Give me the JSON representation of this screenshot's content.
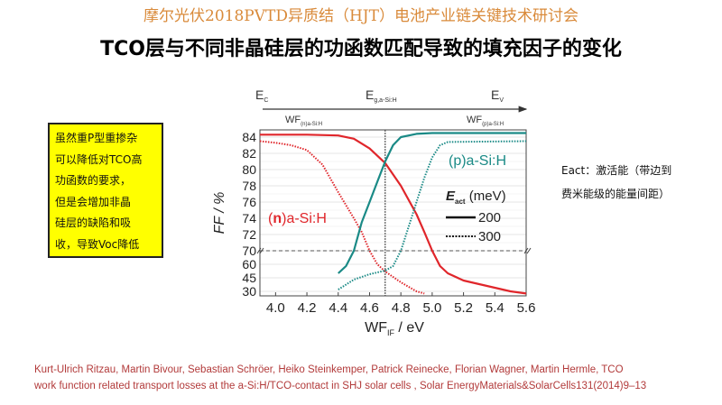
{
  "header": {
    "conference": "摩尔光伏2018PVTD异质结（HJT）电池产业链关键技术研讨会",
    "title": "TCO层与不同非晶硅层的功函数匹配导致的填充因子的变化"
  },
  "note_box": {
    "lines": [
      "虽然重P型重掺杂",
      "可以降低对TCO高",
      "功函数的要求，",
      "但是会增加非晶",
      "硅层的缺陷和吸",
      "收，导致Voc降低"
    ],
    "bg_color": "#ffff00"
  },
  "eact_note": {
    "line1": "Eact：激活能（带边到",
    "line2": "费米能级的能量间距）"
  },
  "reference": {
    "line1": "Kurt-Ulrich Ritzau, Martin Bivour, Sebastian Schröer, Heiko Steinkemper, Patrick Reinecke, Florian Wagner, Martin Hermle, TCO",
    "line2": "work function related transport losses at the a-Si:H/TCO-contact in SHJ solar cells , Solar EnergyMaterials&SolarCells131(2014)9–13"
  },
  "chart_data": {
    "type": "line",
    "title": "",
    "xlabel": "WF",
    "xlabel_sub": "IF",
    "xlabel_unit": " / eV",
    "ylabel": "FF / %",
    "xlim": [
      3.9,
      5.6
    ],
    "x_ticks": [
      "4.0",
      "4.2",
      "4.4",
      "4.6",
      "4.8",
      "5.0",
      "5.2",
      "5.4",
      "5.6"
    ],
    "y_ticks": [
      "84",
      "82",
      "80",
      "78",
      "76",
      "74",
      "72",
      "70",
      "60",
      "45",
      "30"
    ],
    "y_axis_break": "broken axis: 70–84 linear upper segment, 30–60 compressed lower segment",
    "top_axis": {
      "ec": "E",
      "ec_sub": "C",
      "eg": "E",
      "eg_sub": "g,a-Si:H",
      "ev": "E",
      "ev_sub": "V",
      "wfn": "WF",
      "wfn_sub": "(n)a-Si:H",
      "wfp": "WF",
      "wfp_sub": "(p)a-Si:H"
    },
    "reference_lines": {
      "vertical_x": 4.7,
      "horizontal_y": 70
    },
    "annotations": {
      "n_label_open": "(",
      "n_label_n": "n",
      "n_label_rest": ")a-Si:H",
      "p_label": "(p)a-Si:H"
    },
    "legend": {
      "title": "E",
      "title_sub": "act",
      "title_unit": " (meV)",
      "entries": [
        {
          "label": "200",
          "style": "solid"
        },
        {
          "label": "300",
          "style": "dotted"
        }
      ]
    },
    "colors": {
      "n": "#e0262b",
      "p": "#1a8a86"
    },
    "series": [
      {
        "name": "(n)a-Si:H Eact=200",
        "layer": "n",
        "style": "solid",
        "x": [
          3.9,
          4.2,
          4.4,
          4.5,
          4.6,
          4.7,
          4.8,
          4.9,
          4.95,
          5.0,
          5.05,
          5.1,
          5.2,
          5.3,
          5.4,
          5.5,
          5.6
        ],
        "y": [
          84.3,
          84.3,
          84.2,
          83.8,
          82.6,
          80.8,
          78.0,
          74.5,
          72.3,
          70.0,
          58,
          50,
          42,
          38,
          34,
          30,
          27
        ]
      },
      {
        "name": "(n)a-Si:H Eact=300",
        "layer": "n",
        "style": "dotted",
        "x": [
          3.9,
          4.0,
          4.1,
          4.2,
          4.3,
          4.4,
          4.5,
          4.55,
          4.6,
          4.65,
          4.7,
          4.8,
          4.9,
          4.95
        ],
        "y": [
          83.5,
          83.3,
          83.0,
          82.4,
          80.6,
          77.2,
          74.0,
          72.3,
          70.0,
          60,
          52,
          40,
          30,
          27
        ]
      },
      {
        "name": "(p)a-Si:H Eact=200",
        "layer": "p",
        "style": "solid",
        "x": [
          4.4,
          4.45,
          4.5,
          4.55,
          4.6,
          4.65,
          4.7,
          4.75,
          4.8,
          4.9,
          5.0,
          5.6
        ],
        "y": [
          50,
          58,
          70,
          73.5,
          76,
          78.5,
          81,
          83,
          84,
          84.4,
          84.5,
          84.5
        ]
      },
      {
        "name": "(p)a-Si:H Eact=300",
        "layer": "p",
        "style": "dotted",
        "x": [
          4.4,
          4.5,
          4.6,
          4.7,
          4.75,
          4.8,
          4.85,
          4.9,
          4.95,
          5.0,
          5.05,
          5.1,
          5.6
        ],
        "y": [
          32,
          43,
          49,
          53,
          58,
          70,
          73,
          76,
          79,
          81.5,
          83,
          83.4,
          83.5
        ]
      }
    ]
  }
}
